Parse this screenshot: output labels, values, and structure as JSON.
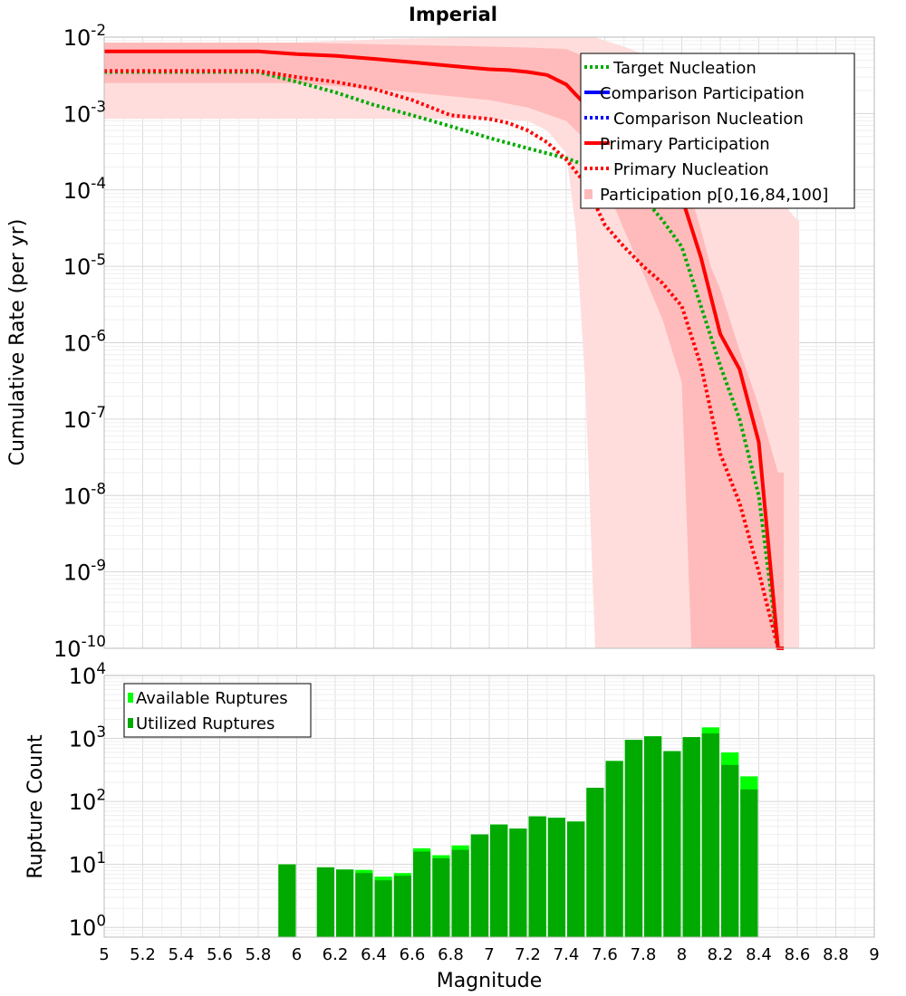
{
  "chart_data": [
    {
      "type": "line",
      "title": "Imperial",
      "xlabel": "",
      "ylabel": "Cumulative Rate (per yr)",
      "xscale": "linear",
      "yscale": "log",
      "xlim": [
        5,
        9
      ],
      "ylim": [
        1e-10,
        0.01
      ],
      "y_ticks": [
        {
          "value": 1e-10,
          "base": "10",
          "exp": "-10"
        },
        {
          "value": 1e-09,
          "base": "10",
          "exp": "-9"
        },
        {
          "value": 1e-08,
          "base": "10",
          "exp": "-8"
        },
        {
          "value": 1e-07,
          "base": "10",
          "exp": "-7"
        },
        {
          "value": 1e-06,
          "base": "10",
          "exp": "-6"
        },
        {
          "value": 1e-05,
          "base": "10",
          "exp": "-5"
        },
        {
          "value": 0.0001,
          "base": "10",
          "exp": "-4"
        },
        {
          "value": 0.001,
          "base": "10",
          "exp": "-3"
        },
        {
          "value": 0.01,
          "base": "10",
          "exp": "-2"
        }
      ],
      "grid": true,
      "legend_position": "top-right",
      "legend": [
        {
          "label": "Target Nucleation",
          "color": "#00aa00",
          "style": "dotted"
        },
        {
          "label": "Comparison Participation",
          "color": "#0000ff",
          "style": "solid"
        },
        {
          "label": "Comparison Nucleation",
          "color": "#0000ff",
          "style": "dotted"
        },
        {
          "label": "Primary Participation",
          "color": "#ff0000",
          "style": "solid"
        },
        {
          "label": "Primary Nucleation",
          "color": "#ff0000",
          "style": "dotted"
        },
        {
          "label": "Participation p[0,16,84,100]",
          "color": "#ffcccc",
          "style": "band"
        }
      ],
      "series": [
        {
          "name": "Target Nucleation",
          "color": "#00aa00",
          "style": "dotted",
          "x": [
            5.0,
            5.4,
            5.8,
            6.0,
            6.2,
            6.4,
            6.6,
            6.8,
            7.0,
            7.2,
            7.4,
            7.5,
            7.6,
            7.7,
            7.8,
            7.9,
            8.0,
            8.1,
            8.2,
            8.3,
            8.4,
            8.5,
            8.53
          ],
          "y": [
            0.0035,
            0.0035,
            0.0035,
            0.0026,
            0.0019,
            0.0013,
            0.00095,
            0.00068,
            0.00048,
            0.00035,
            0.00026,
            0.00021,
            0.00016,
            0.00012,
            8e-05,
            4e-05,
            1.8e-05,
            3e-06,
            5e-07,
            1e-07,
            1e-08,
            1e-10,
            1e-10
          ]
        },
        {
          "name": "Primary Participation",
          "color": "#ff0000",
          "style": "solid",
          "x": [
            5.0,
            5.4,
            5.8,
            6.0,
            6.2,
            6.4,
            6.6,
            6.8,
            7.0,
            7.1,
            7.2,
            7.3,
            7.4,
            7.5,
            7.6,
            7.7,
            7.8,
            7.9,
            8.0,
            8.1,
            8.2,
            8.3,
            8.4,
            8.5,
            8.53
          ],
          "y": [
            0.0065,
            0.0065,
            0.0065,
            0.006,
            0.0057,
            0.0052,
            0.0047,
            0.0042,
            0.0038,
            0.0037,
            0.0035,
            0.0032,
            0.0024,
            0.0013,
            0.00078,
            0.00048,
            0.00028,
            0.00016,
            8e-05,
            1.3e-05,
            1.3e-06,
            4.5e-07,
            5e-08,
            1e-10,
            1e-10
          ]
        },
        {
          "name": "Primary Nucleation",
          "color": "#ff0000",
          "style": "dotted",
          "x": [
            5.0,
            5.4,
            5.8,
            6.0,
            6.2,
            6.4,
            6.6,
            6.8,
            7.0,
            7.1,
            7.2,
            7.3,
            7.4,
            7.5,
            7.6,
            7.7,
            7.8,
            7.9,
            8.0,
            8.1,
            8.2,
            8.3,
            8.4,
            8.5,
            8.53
          ],
          "y": [
            0.0036,
            0.0036,
            0.0036,
            0.003,
            0.0026,
            0.0021,
            0.0015,
            0.00095,
            0.00085,
            0.00075,
            0.0006,
            0.00042,
            0.00025,
            0.00012,
            3.5e-05,
            1.8e-05,
            1e-05,
            6e-06,
            3e-06,
            5e-07,
            3.5e-08,
            8e-09,
            1e-09,
            1e-10,
            1e-10
          ]
        }
      ],
      "bands": [
        {
          "name": "p[0,100]",
          "color": "#ffdddd",
          "x": [
            5.0,
            5.8,
            6.0,
            6.5,
            7.0,
            7.2,
            7.3,
            7.4,
            7.45,
            7.5,
            7.55,
            7.6,
            7.7,
            7.8,
            7.9,
            8.0,
            8.1,
            8.2,
            8.3,
            8.4,
            8.5,
            8.6,
            8.61
          ],
          "lower": [
            0.00085,
            0.00085,
            0.00085,
            0.00085,
            0.00085,
            0.0008,
            0.0006,
            0.0003,
            3e-05,
            2.5e-07,
            1e-10,
            1e-10,
            1e-10,
            1e-10,
            1e-10,
            1e-10,
            1e-10,
            1e-10,
            1e-10,
            1e-10,
            1e-10,
            1e-10,
            1e-10
          ],
          "upper": [
            0.0075,
            0.0075,
            0.0085,
            0.0095,
            0.01,
            0.01,
            0.01,
            0.01,
            0.01,
            0.01,
            0.01,
            0.009,
            0.0075,
            0.006,
            0.005,
            0.004,
            0.0025,
            0.0012,
            0.0005,
            0.00016,
            8e-05,
            4e-05,
            4e-05
          ]
        },
        {
          "name": "p[16,84]",
          "color": "#ffbbbb",
          "x": [
            5.0,
            5.8,
            6.0,
            6.5,
            7.0,
            7.2,
            7.4,
            7.5,
            7.6,
            7.7,
            7.8,
            7.9,
            8.0,
            8.05,
            8.1,
            8.15,
            8.2,
            8.3,
            8.4,
            8.5,
            8.53
          ],
          "lower": [
            0.0025,
            0.0025,
            0.0025,
            0.002,
            0.0015,
            0.0012,
            0.0008,
            0.00045,
            0.00012,
            3e-05,
            8e-06,
            2e-06,
            3e-07,
            1e-10,
            1e-10,
            1e-10,
            1e-10,
            1e-10,
            1e-10,
            1e-10,
            1e-10
          ],
          "upper": [
            0.0085,
            0.0085,
            0.0085,
            0.008,
            0.0075,
            0.0073,
            0.007,
            0.0055,
            0.0035,
            0.0018,
            0.0009,
            0.0004,
            0.00018,
            8e-05,
            3e-05,
            1e-05,
            5e-06,
            8e-07,
            1.5e-07,
            2e-08,
            2e-08
          ]
        }
      ]
    },
    {
      "type": "bar",
      "title": "",
      "xlabel": "Magnitude",
      "ylabel": "Rupture Count",
      "xscale": "linear",
      "yscale": "log",
      "xlim": [
        5,
        9
      ],
      "ylim": [
        0.7,
        10000
      ],
      "x_ticks": [
        5,
        5.2,
        5.4,
        5.6,
        5.8,
        6,
        6.2,
        6.4,
        6.6,
        6.8,
        7,
        7.2,
        7.4,
        7.6,
        7.8,
        8,
        8.2,
        8.4,
        8.6,
        8.8,
        9
      ],
      "y_ticks": [
        {
          "value": 1,
          "base": "10",
          "exp": "0"
        },
        {
          "value": 10,
          "base": "10",
          "exp": "1"
        },
        {
          "value": 100,
          "base": "10",
          "exp": "2"
        },
        {
          "value": 1000,
          "base": "10",
          "exp": "3"
        },
        {
          "value": 10000,
          "base": "10",
          "exp": "4"
        }
      ],
      "grid": true,
      "legend_position": "top-left",
      "legend": [
        {
          "label": "Available Ruptures",
          "color": "#00ff00"
        },
        {
          "label": "Utilized Ruptures",
          "color": "#00aa00"
        }
      ],
      "bin_width": 0.1,
      "bins": [
        5.95,
        6.15,
        6.25,
        6.35,
        6.45,
        6.55,
        6.65,
        6.75,
        6.85,
        6.95,
        7.05,
        7.15,
        7.25,
        7.35,
        7.45,
        7.55,
        7.65,
        7.75,
        7.85,
        7.95,
        8.05,
        8.15,
        8.25,
        8.35
      ],
      "series": [
        {
          "name": "Available Ruptures",
          "color": "#00ff00",
          "values": [
            10,
            9,
            8.3,
            8.2,
            6.4,
            7.3,
            18,
            14,
            20,
            30,
            43,
            37,
            58,
            55,
            48,
            165,
            440,
            950,
            1080,
            630,
            1050,
            1500,
            600,
            250
          ]
        },
        {
          "name": "Utilized Ruptures",
          "color": "#00aa00",
          "values": [
            10,
            9,
            8.3,
            7.3,
            5.6,
            6.6,
            16,
            12.5,
            17,
            30,
            43,
            37,
            58,
            55,
            48,
            165,
            440,
            950,
            1080,
            630,
            1050,
            1200,
            380,
            155
          ]
        }
      ]
    }
  ]
}
